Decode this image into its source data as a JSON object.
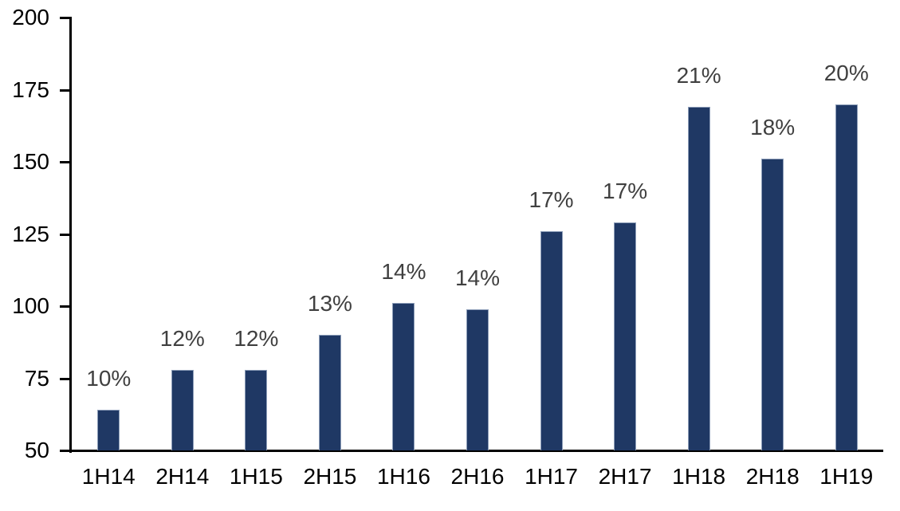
{
  "chart_data": {
    "type": "bar",
    "title": "",
    "xlabel": "",
    "ylabel": "",
    "categories": [
      "1H14",
      "2H14",
      "1H15",
      "2H15",
      "1H16",
      "2H16",
      "1H17",
      "2H17",
      "1H18",
      "2H18",
      "1H19"
    ],
    "values": [
      64,
      78,
      78,
      90,
      101,
      99,
      126,
      129,
      169,
      151,
      170
    ],
    "bar_labels": [
      "10%",
      "12%",
      "12%",
      "13%",
      "14%",
      "14%",
      "17%",
      "17%",
      "21%",
      "18%",
      "20%"
    ],
    "ylim": [
      50,
      200
    ],
    "yticks": [
      50,
      75,
      100,
      125,
      150,
      175,
      200
    ],
    "grid": false,
    "legend_position": "none",
    "colors": {
      "bar_fill": "#1F3864",
      "bar_border": "#8C9DB8",
      "axis": "#000000",
      "tick_label": "#000000",
      "data_label": "#404040",
      "background": "#FFFFFF"
    }
  }
}
